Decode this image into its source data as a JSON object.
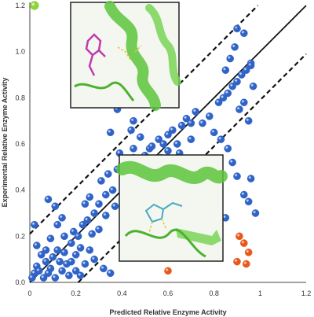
{
  "chart_data": {
    "type": "scatter",
    "xlabel": "Predicted Relative Enzyme Activity",
    "ylabel": "Experimental Relative Enzyme Activity",
    "xlim": [
      0,
      1.2
    ],
    "ylim": [
      0,
      1.2
    ],
    "x_ticks": [
      "0",
      "0.2",
      "0.4",
      "0.6",
      "0.8",
      "1",
      "1.2"
    ],
    "y_ticks": [
      "0.0",
      "0.2",
      "0.4",
      "0.6",
      "0.8",
      "1.0",
      "1.2"
    ],
    "grid": false,
    "legend": "none",
    "colors": {
      "blue": "#2f63c8",
      "orange": "#e8581c",
      "green": "#8dd33a",
      "protein": "#5cc43a",
      "ligand_magenta": "#c03ab0"
    },
    "reference_lines": [
      {
        "style": "solid",
        "x": [
          0,
          1.2
        ],
        "y": [
          0,
          1.2
        ]
      },
      {
        "style": "dashed",
        "x": [
          0,
          0.99
        ],
        "y": [
          0.21,
          1.2
        ]
      },
      {
        "style": "dashed",
        "x": [
          0.21,
          1.2
        ],
        "y": [
          0,
          0.99
        ]
      }
    ],
    "series": [
      {
        "color": "blue",
        "points": [
          [
            0.02,
            0.04
          ],
          [
            0.03,
            0.07
          ],
          [
            0.01,
            0.02
          ],
          [
            0.04,
            0.05
          ],
          [
            0.05,
            0.12
          ],
          [
            0.07,
            0.09
          ],
          [
            0.08,
            0.04
          ],
          [
            0.1,
            0.11
          ],
          [
            0.12,
            0.14
          ],
          [
            0.13,
            0.09
          ],
          [
            0.15,
            0.13
          ],
          [
            0.16,
            0.08
          ],
          [
            0.18,
            0.17
          ],
          [
            0.06,
            0.02
          ],
          [
            0.09,
            0.06
          ],
          [
            0.11,
            0.02
          ],
          [
            0.14,
            0.05
          ],
          [
            0.17,
            0.03
          ],
          [
            0.2,
            0.12
          ],
          [
            0.22,
            0.15
          ],
          [
            0.03,
            0.16
          ],
          [
            0.02,
            0.25
          ],
          [
            0.19,
            0.22
          ],
          [
            0.21,
            0.2
          ],
          [
            0.23,
            0.25
          ],
          [
            0.25,
            0.27
          ],
          [
            0.27,
            0.21
          ],
          [
            0.28,
            0.3
          ],
          [
            0.24,
            0.34
          ],
          [
            0.26,
            0.37
          ],
          [
            0.3,
            0.34
          ],
          [
            0.12,
            0.25
          ],
          [
            0.11,
            0.33
          ],
          [
            0.14,
            0.28
          ],
          [
            0.08,
            0.36
          ],
          [
            0.33,
            0.38
          ],
          [
            0.36,
            0.4
          ],
          [
            0.31,
            0.44
          ],
          [
            0.34,
            0.47
          ],
          [
            0.38,
            0.49
          ],
          [
            0.4,
            0.51
          ],
          [
            0.39,
            0.56
          ],
          [
            0.42,
            0.5
          ],
          [
            0.45,
            0.54
          ],
          [
            0.47,
            0.5
          ],
          [
            0.5,
            0.55
          ],
          [
            0.52,
            0.58
          ],
          [
            0.55,
            0.52
          ],
          [
            0.53,
            0.59
          ],
          [
            0.56,
            0.62
          ],
          [
            0.58,
            0.6
          ],
          [
            0.44,
            0.66
          ],
          [
            0.45,
            0.7
          ],
          [
            0.35,
            0.65
          ],
          [
            0.38,
            0.75
          ],
          [
            0.6,
            0.64
          ],
          [
            0.62,
            0.66
          ],
          [
            0.64,
            0.6
          ],
          [
            0.66,
            0.68
          ],
          [
            0.68,
            0.71
          ],
          [
            0.7,
            0.69
          ],
          [
            0.72,
            0.74
          ],
          [
            0.75,
            0.69
          ],
          [
            0.78,
            0.72
          ],
          [
            0.8,
            0.65
          ],
          [
            0.82,
            0.78
          ],
          [
            0.84,
            0.8
          ],
          [
            0.86,
            0.82
          ],
          [
            0.88,
            0.85
          ],
          [
            0.9,
            0.87
          ],
          [
            0.92,
            0.9
          ],
          [
            0.94,
            0.92
          ],
          [
            0.96,
            0.95
          ],
          [
            0.91,
            0.75
          ],
          [
            0.93,
            0.78
          ],
          [
            0.95,
            0.7
          ],
          [
            0.85,
            0.92
          ],
          [
            0.87,
            0.97
          ],
          [
            0.89,
            1.02
          ],
          [
            0.9,
            1.1
          ],
          [
            0.93,
            1.08
          ],
          [
            0.96,
            0.94
          ],
          [
            0.97,
            0.85
          ],
          [
            0.83,
            0.62
          ],
          [
            0.86,
            0.58
          ],
          [
            0.88,
            0.52
          ],
          [
            0.81,
            0.48
          ],
          [
            0.82,
            0.4
          ],
          [
            0.9,
            0.46
          ],
          [
            0.93,
            0.38
          ],
          [
            0.95,
            0.35
          ],
          [
            0.96,
            0.45
          ],
          [
            0.98,
            0.3
          ],
          [
            0.85,
            0.28
          ],
          [
            0.8,
            0.25
          ],
          [
            0.26,
            0.14
          ],
          [
            0.28,
            0.1
          ],
          [
            0.32,
            0.06
          ],
          [
            0.35,
            0.04
          ],
          [
            0.3,
            0.23
          ],
          [
            0.33,
            0.29
          ],
          [
            0.37,
            0.33
          ],
          [
            0.15,
            0.2
          ],
          [
            0.18,
            0.09
          ],
          [
            0.2,
            0.05
          ],
          [
            0.22,
            0.03
          ],
          [
            0.24,
            0.08
          ],
          [
            0.07,
            0.14
          ],
          [
            0.09,
            0.19
          ],
          [
            0.45,
            0.58
          ],
          [
            0.48,
            0.63
          ],
          [
            0.57,
            0.54
          ],
          [
            0.6,
            0.57
          ],
          [
            0.65,
            0.56
          ],
          [
            0.7,
            0.62
          ]
        ]
      },
      {
        "color": "orange",
        "points": [
          [
            0.91,
            0.2
          ],
          [
            0.93,
            0.17
          ],
          [
            0.95,
            0.13
          ],
          [
            0.9,
            0.09
          ],
          [
            0.94,
            0.08
          ],
          [
            0.6,
            0.05
          ]
        ]
      },
      {
        "color": "green",
        "points": [
          [
            0.02,
            1.2
          ]
        ]
      }
    ]
  }
}
